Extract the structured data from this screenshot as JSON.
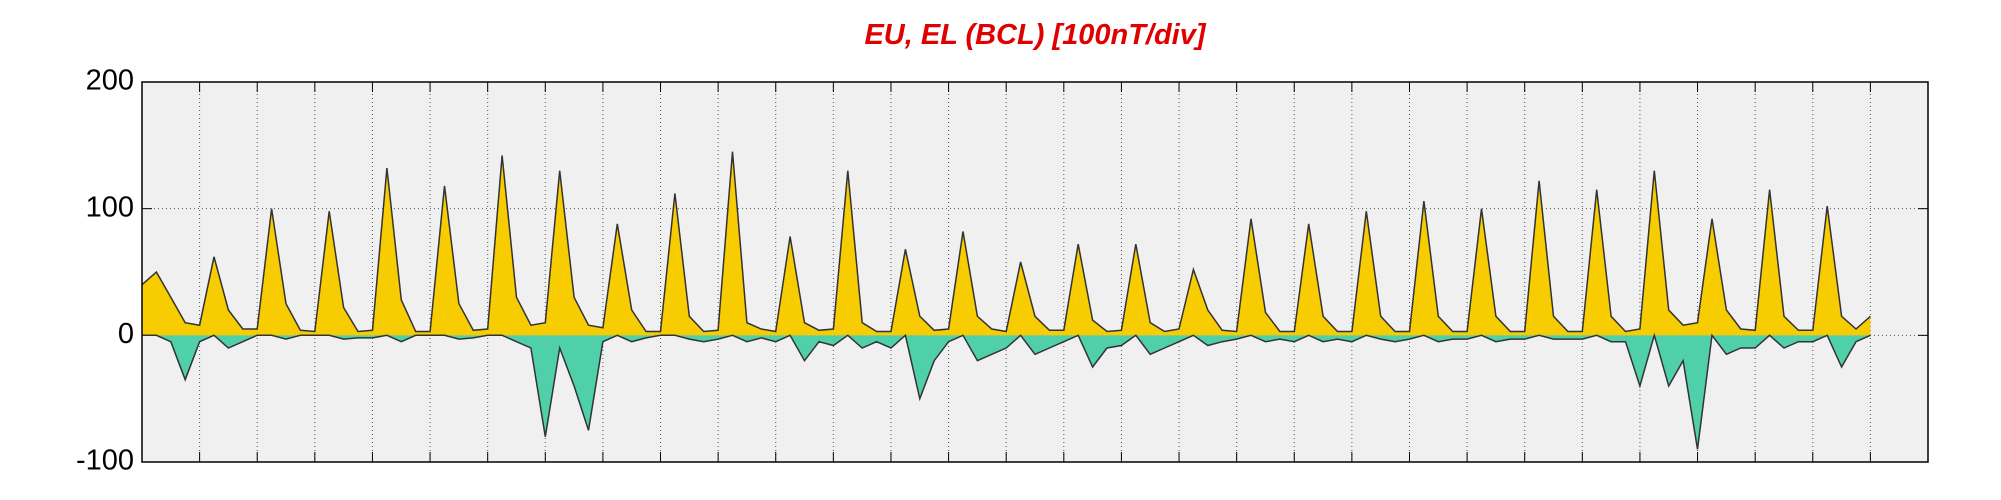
{
  "chart_data": {
    "type": "area",
    "title": "EU, EL (BCL)  [100nT/div]",
    "ylim": [
      -100,
      200
    ],
    "yticks": [
      -100,
      0,
      100,
      200
    ],
    "xlim": [
      0,
      31
    ],
    "xticks": [
      1,
      2,
      3,
      4,
      5,
      6,
      7,
      8,
      9,
      10,
      11,
      12,
      13,
      14,
      15,
      16,
      17,
      18,
      19,
      20,
      21,
      22,
      23,
      24,
      25,
      26,
      27,
      28,
      29,
      30
    ],
    "grid": true,
    "x": [
      0,
      0.25,
      0.5,
      0.75,
      1,
      1.25,
      1.5,
      1.75,
      2,
      2.25,
      2.5,
      2.75,
      3,
      3.25,
      3.5,
      3.75,
      4,
      4.25,
      4.5,
      4.75,
      5,
      5.25,
      5.5,
      5.75,
      6,
      6.25,
      6.5,
      6.75,
      7,
      7.25,
      7.5,
      7.75,
      8,
      8.25,
      8.5,
      8.75,
      9,
      9.25,
      9.5,
      9.75,
      10,
      10.25,
      10.5,
      10.75,
      11,
      11.25,
      11.5,
      11.75,
      12,
      12.25,
      12.5,
      12.75,
      13,
      13.25,
      13.5,
      13.75,
      14,
      14.25,
      14.5,
      14.75,
      15,
      15.25,
      15.5,
      15.75,
      16,
      16.25,
      16.5,
      16.75,
      17,
      17.25,
      17.5,
      17.75,
      18,
      18.25,
      18.5,
      18.75,
      19,
      19.25,
      19.5,
      19.75,
      20,
      20.25,
      20.5,
      20.75,
      21,
      21.25,
      21.5,
      21.75,
      22,
      22.25,
      22.5,
      22.75,
      23,
      23.25,
      23.5,
      23.75,
      24,
      24.25,
      24.5,
      24.75,
      25,
      25.25,
      25.5,
      25.75,
      26,
      26.25,
      26.5,
      26.75,
      27,
      27.25,
      27.5,
      27.75,
      28,
      28.25,
      28.5,
      28.75,
      29,
      29.25,
      29.5,
      29.75,
      30
    ],
    "series": [
      {
        "color": "#f7cc00",
        "line_color": "#333333",
        "values": [
          40,
          50,
          30,
          10,
          8,
          62,
          20,
          5,
          5,
          100,
          25,
          4,
          3,
          98,
          22,
          3,
          4,
          132,
          28,
          3,
          3,
          118,
          25,
          4,
          5,
          142,
          30,
          8,
          10,
          130,
          30,
          8,
          6,
          88,
          20,
          3,
          3,
          112,
          15,
          3,
          4,
          145,
          10,
          5,
          3,
          78,
          10,
          4,
          5,
          130,
          10,
          3,
          3,
          68,
          15,
          4,
          5,
          82,
          15,
          5,
          3,
          58,
          15,
          4,
          4,
          72,
          12,
          3,
          4,
          72,
          10,
          3,
          5,
          52,
          20,
          4,
          3,
          92,
          18,
          3,
          3,
          88,
          15,
          3,
          3,
          98,
          15,
          3,
          3,
          106,
          15,
          3,
          3,
          100,
          15,
          3,
          3,
          122,
          15,
          3,
          3,
          115,
          15,
          3,
          5,
          130,
          20,
          8,
          10,
          92,
          20,
          5,
          4,
          115,
          15,
          4,
          4,
          102,
          15,
          5,
          15
        ]
      },
      {
        "color": "#4fd0a8",
        "line_color": "#333333",
        "values": [
          0,
          0,
          -5,
          -35,
          -5,
          0,
          -10,
          -5,
          0,
          0,
          -3,
          0,
          0,
          0,
          -3,
          -2,
          -2,
          0,
          -5,
          0,
          0,
          0,
          -3,
          -2,
          0,
          0,
          -5,
          -10,
          -80,
          -10,
          -40,
          -75,
          -5,
          0,
          -5,
          -2,
          0,
          0,
          -3,
          -5,
          -3,
          0,
          -5,
          -2,
          -5,
          0,
          -20,
          -5,
          -8,
          0,
          -10,
          -5,
          -10,
          0,
          -50,
          -20,
          -5,
          0,
          -20,
          -15,
          -10,
          0,
          -15,
          -10,
          -5,
          0,
          -25,
          -10,
          -8,
          0,
          -15,
          -10,
          -5,
          0,
          -8,
          -5,
          -3,
          0,
          -5,
          -3,
          -5,
          0,
          -5,
          -3,
          -5,
          0,
          -3,
          -5,
          -3,
          0,
          -5,
          -3,
          -3,
          0,
          -5,
          -3,
          -3,
          0,
          -3,
          -3,
          -3,
          0,
          -5,
          -5,
          -40,
          0,
          -40,
          -20,
          -90,
          0,
          -15,
          -10,
          -10,
          0,
          -10,
          -5,
          -5,
          0,
          -25,
          -5,
          0
        ]
      }
    ]
  }
}
